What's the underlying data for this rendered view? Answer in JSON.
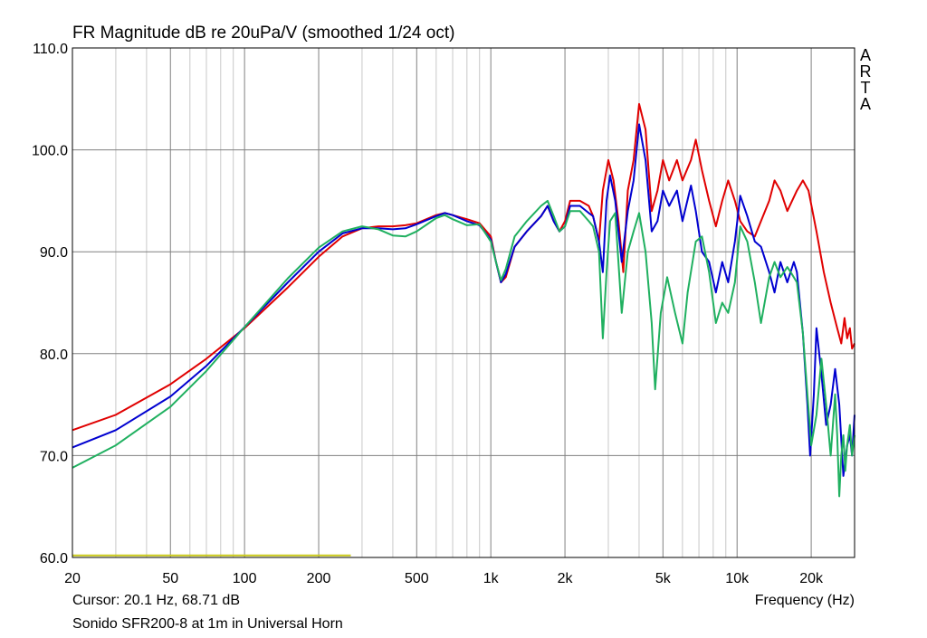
{
  "header": {
    "title": "FR Magnitude dB re 20uPa/V (smoothed 1/24 oct)",
    "brand": "ARTA"
  },
  "footer": {
    "cursor": "Cursor: 20.1 Hz, 68.71 dB",
    "caption": "Sonido SFR200-8 at 1m in Universal Horn"
  },
  "chart_data": {
    "type": "line",
    "title": "FR Magnitude dB re 20uPa/V (smoothed 1/24 oct)",
    "xlabel": "Frequency (Hz)",
    "ylabel": "",
    "x_scale": "log",
    "xlim": [
      20,
      30000
    ],
    "ylim": [
      60,
      110
    ],
    "grid": true,
    "x_ticks": [
      {
        "value": 20,
        "label": "20"
      },
      {
        "value": 50,
        "label": "50"
      },
      {
        "value": 100,
        "label": "100"
      },
      {
        "value": 200,
        "label": "200"
      },
      {
        "value": 500,
        "label": "500"
      },
      {
        "value": 1000,
        "label": "1k"
      },
      {
        "value": 2000,
        "label": "2k"
      },
      {
        "value": 5000,
        "label": "5k"
      },
      {
        "value": 10000,
        "label": "10k"
      },
      {
        "value": 20000,
        "label": "20k"
      }
    ],
    "y_ticks": [
      {
        "value": 60,
        "label": "60.0"
      },
      {
        "value": 70,
        "label": "70.0"
      },
      {
        "value": 80,
        "label": "80.0"
      },
      {
        "value": 90,
        "label": "90.0"
      },
      {
        "value": 100,
        "label": "100.0"
      },
      {
        "value": 110,
        "label": "110.0"
      }
    ],
    "series": [
      {
        "color": "#e00000",
        "points": [
          [
            20,
            72.5
          ],
          [
            30,
            74
          ],
          [
            50,
            77
          ],
          [
            70,
            79.5
          ],
          [
            100,
            82.5
          ],
          [
            150,
            86.5
          ],
          [
            200,
            89.5
          ],
          [
            250,
            91.5
          ],
          [
            300,
            92.3
          ],
          [
            350,
            92.5
          ],
          [
            400,
            92.5
          ],
          [
            450,
            92.6
          ],
          [
            500,
            92.8
          ],
          [
            600,
            93.6
          ],
          [
            650,
            93.8
          ],
          [
            700,
            93.6
          ],
          [
            800,
            93.2
          ],
          [
            900,
            92.8
          ],
          [
            1000,
            91.5
          ],
          [
            1050,
            89
          ],
          [
            1100,
            87
          ],
          [
            1150,
            87.5
          ],
          [
            1250,
            90.5
          ],
          [
            1400,
            92
          ],
          [
            1600,
            93.5
          ],
          [
            1700,
            94.5
          ],
          [
            1800,
            93
          ],
          [
            1900,
            92
          ],
          [
            2000,
            93
          ],
          [
            2100,
            95
          ],
          [
            2300,
            95
          ],
          [
            2500,
            94.5
          ],
          [
            2600,
            93.5
          ],
          [
            2750,
            91
          ],
          [
            2850,
            96
          ],
          [
            3000,
            99
          ],
          [
            3150,
            97
          ],
          [
            3300,
            93
          ],
          [
            3450,
            88
          ],
          [
            3600,
            96
          ],
          [
            3800,
            99
          ],
          [
            4000,
            104.5
          ],
          [
            4250,
            102
          ],
          [
            4500,
            94
          ],
          [
            4750,
            96
          ],
          [
            5000,
            99
          ],
          [
            5300,
            97
          ],
          [
            5700,
            99
          ],
          [
            6000,
            97
          ],
          [
            6500,
            99
          ],
          [
            6800,
            101
          ],
          [
            7200,
            98
          ],
          [
            7700,
            95
          ],
          [
            8200,
            92.5
          ],
          [
            8700,
            95
          ],
          [
            9200,
            97
          ],
          [
            9800,
            95
          ],
          [
            10300,
            93
          ],
          [
            11000,
            92
          ],
          [
            11800,
            91.5
          ],
          [
            12500,
            93
          ],
          [
            13500,
            95
          ],
          [
            14200,
            97
          ],
          [
            15000,
            96
          ],
          [
            16000,
            94
          ],
          [
            17500,
            96
          ],
          [
            18500,
            97
          ],
          [
            19500,
            96
          ],
          [
            21000,
            92
          ],
          [
            22500,
            88
          ],
          [
            24000,
            85
          ],
          [
            25500,
            82.5
          ],
          [
            26500,
            81
          ],
          [
            27300,
            83.5
          ],
          [
            28000,
            81.5
          ],
          [
            28700,
            82.5
          ],
          [
            29300,
            80.5
          ],
          [
            30000,
            81
          ]
        ]
      },
      {
        "color": "#0000d0",
        "points": [
          [
            20,
            70.8
          ],
          [
            30,
            72.5
          ],
          [
            50,
            75.8
          ],
          [
            70,
            78.8
          ],
          [
            100,
            82.6
          ],
          [
            150,
            87
          ],
          [
            200,
            90
          ],
          [
            250,
            91.8
          ],
          [
            300,
            92.3
          ],
          [
            350,
            92.3
          ],
          [
            400,
            92.2
          ],
          [
            450,
            92.3
          ],
          [
            500,
            92.7
          ],
          [
            600,
            93.5
          ],
          [
            650,
            93.8
          ],
          [
            700,
            93.6
          ],
          [
            800,
            93
          ],
          [
            900,
            92.6
          ],
          [
            1000,
            91.2
          ],
          [
            1050,
            89
          ],
          [
            1100,
            87
          ],
          [
            1150,
            87.8
          ],
          [
            1250,
            90.5
          ],
          [
            1400,
            92
          ],
          [
            1600,
            93.5
          ],
          [
            1700,
            94.5
          ],
          [
            1800,
            93
          ],
          [
            1900,
            92
          ],
          [
            2000,
            92.5
          ],
          [
            2100,
            94.5
          ],
          [
            2300,
            94.5
          ],
          [
            2500,
            93.8
          ],
          [
            2600,
            93.5
          ],
          [
            2750,
            91
          ],
          [
            2850,
            88
          ],
          [
            2950,
            95
          ],
          [
            3050,
            97.5
          ],
          [
            3200,
            95
          ],
          [
            3400,
            89
          ],
          [
            3600,
            94
          ],
          [
            3800,
            97
          ],
          [
            4000,
            102.5
          ],
          [
            4250,
            99
          ],
          [
            4500,
            92
          ],
          [
            4750,
            93
          ],
          [
            5000,
            96
          ],
          [
            5300,
            94.5
          ],
          [
            5700,
            96
          ],
          [
            6000,
            93
          ],
          [
            6500,
            96.5
          ],
          [
            6800,
            94
          ],
          [
            7200,
            90
          ],
          [
            7700,
            89
          ],
          [
            8200,
            86
          ],
          [
            8700,
            89
          ],
          [
            9200,
            87
          ],
          [
            9800,
            91
          ],
          [
            10300,
            95.5
          ],
          [
            11000,
            93.5
          ],
          [
            11800,
            91
          ],
          [
            12500,
            90.5
          ],
          [
            13500,
            88
          ],
          [
            14200,
            86
          ],
          [
            15000,
            89
          ],
          [
            16000,
            87
          ],
          [
            17000,
            89
          ],
          [
            17500,
            88
          ],
          [
            18500,
            82
          ],
          [
            19300,
            75
          ],
          [
            19800,
            70
          ],
          [
            20500,
            76
          ],
          [
            21000,
            82.5
          ],
          [
            22000,
            78
          ],
          [
            23000,
            73
          ],
          [
            24000,
            75
          ],
          [
            25000,
            78.5
          ],
          [
            26000,
            75
          ],
          [
            27000,
            68
          ],
          [
            28000,
            71
          ],
          [
            28700,
            72
          ],
          [
            29300,
            70
          ],
          [
            30000,
            74
          ]
        ]
      },
      {
        "color": "#20b060",
        "points": [
          [
            20,
            68.8
          ],
          [
            30,
            71
          ],
          [
            50,
            74.8
          ],
          [
            70,
            78.3
          ],
          [
            100,
            82.6
          ],
          [
            150,
            87.4
          ],
          [
            200,
            90.4
          ],
          [
            250,
            92
          ],
          [
            300,
            92.5
          ],
          [
            350,
            92.2
          ],
          [
            400,
            91.6
          ],
          [
            450,
            91.5
          ],
          [
            500,
            92
          ],
          [
            600,
            93.3
          ],
          [
            650,
            93.6
          ],
          [
            700,
            93.2
          ],
          [
            800,
            92.6
          ],
          [
            900,
            92.7
          ],
          [
            1000,
            91
          ],
          [
            1050,
            89
          ],
          [
            1100,
            87.2
          ],
          [
            1150,
            88.3
          ],
          [
            1250,
            91.5
          ],
          [
            1400,
            93
          ],
          [
            1600,
            94.5
          ],
          [
            1700,
            95
          ],
          [
            1800,
            93.5
          ],
          [
            1900,
            92
          ],
          [
            2000,
            92.5
          ],
          [
            2100,
            94
          ],
          [
            2300,
            94
          ],
          [
            2500,
            93
          ],
          [
            2600,
            92.5
          ],
          [
            2750,
            90
          ],
          [
            2850,
            81.5
          ],
          [
            2950,
            88
          ],
          [
            3050,
            93
          ],
          [
            3200,
            93.8
          ],
          [
            3400,
            84
          ],
          [
            3600,
            90
          ],
          [
            3800,
            92
          ],
          [
            4000,
            93.8
          ],
          [
            4250,
            90
          ],
          [
            4500,
            83
          ],
          [
            4650,
            76.5
          ],
          [
            4900,
            84
          ],
          [
            5200,
            87.5
          ],
          [
            5600,
            84
          ],
          [
            6000,
            81
          ],
          [
            6300,
            86
          ],
          [
            6800,
            91
          ],
          [
            7200,
            91.5
          ],
          [
            7700,
            88
          ],
          [
            8200,
            83
          ],
          [
            8700,
            85
          ],
          [
            9200,
            84
          ],
          [
            9800,
            87
          ],
          [
            10300,
            92.5
          ],
          [
            11000,
            91
          ],
          [
            11800,
            87
          ],
          [
            12500,
            83
          ],
          [
            13500,
            87.5
          ],
          [
            14200,
            89
          ],
          [
            15000,
            87.5
          ],
          [
            16000,
            88.5
          ],
          [
            16500,
            88
          ],
          [
            17500,
            87
          ],
          [
            18500,
            82
          ],
          [
            19300,
            76
          ],
          [
            20000,
            71
          ],
          [
            21000,
            74
          ],
          [
            22000,
            79.5
          ],
          [
            23000,
            75
          ],
          [
            24000,
            70
          ],
          [
            25000,
            76
          ],
          [
            25500,
            72
          ],
          [
            26000,
            66
          ],
          [
            26500,
            70
          ],
          [
            27000,
            72
          ],
          [
            27500,
            68.5
          ],
          [
            28000,
            71
          ],
          [
            28700,
            73
          ],
          [
            29300,
            70
          ],
          [
            30000,
            72
          ]
        ]
      },
      {
        "color": "#c8c818",
        "points": [
          [
            20,
            60.2
          ],
          [
            270,
            60.2
          ]
        ]
      }
    ]
  }
}
